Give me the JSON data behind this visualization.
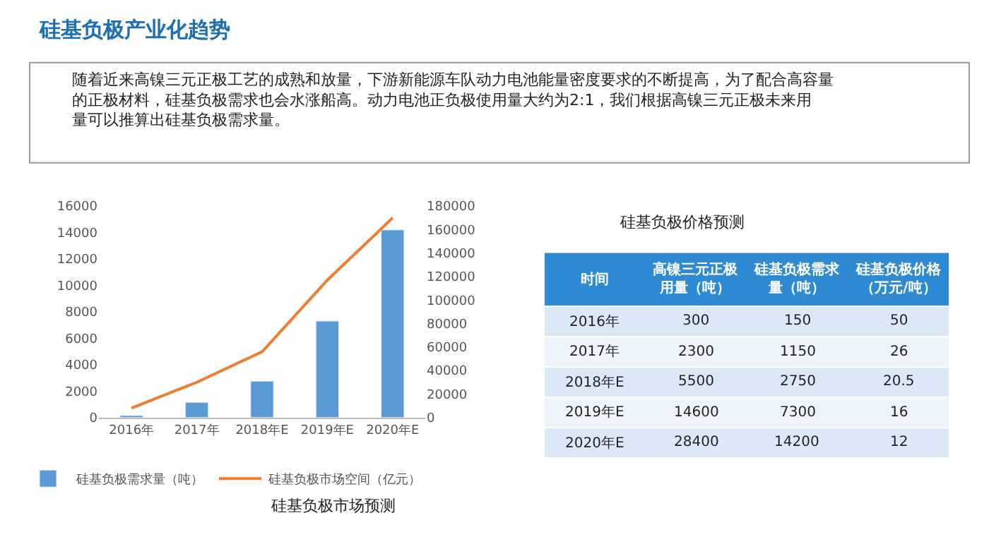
{
  "chart_data": [
    {
      "type": "other",
      "title": "硅基负极产业化趋势",
      "annotations": [
        "随着近来高镍三元正极工艺的成熟和放量，下游新能源车队动力电池能量密度要求的不断提高，为了配合高容量的正极材料，硅基负极需求也会水涨船高。动力电池正负极使用量大约为2:1，我们根据高镍三元正极未来用量可以推算出硅基负极需求量。"
      ]
    },
    {
      "type": "bar",
      "title": "硅基负极市场预测",
      "categories": [
        "2016年",
        "2017年",
        "2018年E",
        "2019年E",
        "2020年E"
      ],
      "series": [
        {
          "name": "硅基负极需求量（吨）",
          "color": "#5b9bd5",
          "values": [
            150,
            1150,
            2750,
            7300,
            14200
          ]
        },
        {
          "name": "硅基负极市场空间（亿元）",
          "color": "#ed7d31",
          "type": "line",
          "axis": "y2",
          "values": [
            8000,
            30000,
            56000,
            117000,
            170000
          ]
        }
      ],
      "ylim": [
        0,
        16000
      ],
      "yticks": [
        0,
        2000,
        4000,
        6000,
        8000,
        10000,
        12000,
        14000,
        16000
      ],
      "y2lim": [
        0,
        180000
      ],
      "y2ticks": [
        0,
        20000,
        40000,
        60000,
        80000,
        100000,
        120000,
        140000,
        160000,
        180000
      ],
      "legend": "bottom",
      "marker": "none",
      "line_style": "solid"
    },
    {
      "type": "heatmap",
      "title": "硅基负极价格预测",
      "ylabel": "时间",
      "data_labels": true,
      "categories": [
        "高镍三元正极用量（吨）",
        "硅基负极需求量（吨）",
        "硅基负极价格（万元/吨）"
      ],
      "y_categories": [
        "2016年",
        "2017年",
        "2018年E",
        "2019年E",
        "2020年E"
      ],
      "cells": [
        [
          300,
          150,
          50
        ],
        [
          2300,
          1150,
          26
        ],
        [
          5500,
          2750,
          20.5
        ],
        [
          14600,
          7300,
          16
        ],
        [
          28400,
          14200,
          12
        ]
      ]
    }
  ]
}
